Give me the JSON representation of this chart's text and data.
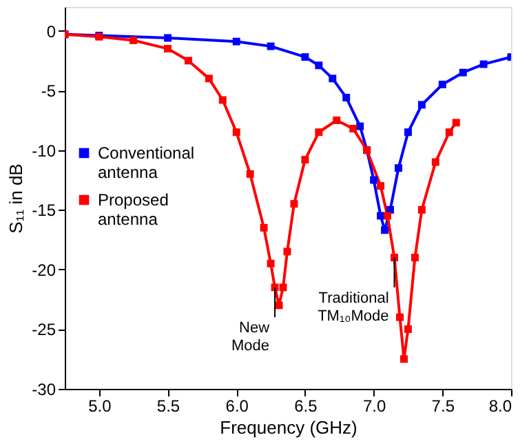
{
  "chart_data": {
    "type": "line",
    "xlabel": "Frequency (GHz)",
    "ylabel": "S₁₁ in dB",
    "xlim": [
      4.75,
      8.0
    ],
    "ylim": [
      -30,
      2
    ],
    "xticks": [
      {
        "value": 5,
        "label": "5.0"
      },
      5.5,
      {
        "value": 6,
        "label": "6.0"
      },
      6.5,
      {
        "value": 7,
        "label": "7.0"
      },
      7.5,
      {
        "value": 8,
        "label": "8.0"
      }
    ],
    "yticks": [
      -30,
      -25,
      -20,
      -15,
      -10,
      -5,
      0
    ],
    "grid": false,
    "legend": "left",
    "marker": "square",
    "line_style": "solid",
    "series": [
      {
        "name": "Conventional antenna",
        "color": "#0000ff",
        "x": [
          4.75,
          5.0,
          5.5,
          6.0,
          6.25,
          6.5,
          6.6,
          6.7,
          6.8,
          6.9,
          6.95,
          7.0,
          7.05,
          7.08,
          7.12,
          7.18,
          7.25,
          7.35,
          7.5,
          7.65,
          7.8,
          8.0
        ],
        "values": [
          -0.3,
          -0.4,
          -0.6,
          -0.9,
          -1.3,
          -2.2,
          -2.9,
          -4.0,
          -5.6,
          -8,
          -10,
          -12.5,
          -15.5,
          -16.7,
          -15,
          -11.5,
          -8.5,
          -6.2,
          -4.5,
          -3.5,
          -2.8,
          -2.2
        ]
      },
      {
        "name": "Proposed antenna",
        "color": "#ff0000",
        "x": [
          4.75,
          5.0,
          5.25,
          5.5,
          5.65,
          5.8,
          5.9,
          6.0,
          6.1,
          6.2,
          6.25,
          6.28,
          6.31,
          6.34,
          6.37,
          6.42,
          6.5,
          6.6,
          6.73,
          6.85,
          6.95,
          7.05,
          7.1,
          7.15,
          7.19,
          7.22,
          7.25,
          7.3,
          7.35,
          7.45,
          7.55,
          7.6
        ],
        "values": [
          -0.3,
          -0.5,
          -0.8,
          -1.5,
          -2.5,
          -4,
          -5.8,
          -8.5,
          -12,
          -16.5,
          -19.5,
          -21.5,
          -23,
          -21.5,
          -18.5,
          -14.5,
          -10.8,
          -8.5,
          -7.5,
          -8.2,
          -10,
          -13,
          -15.5,
          -19,
          -24,
          -27.5,
          -25,
          -19,
          -15,
          -11,
          -8.5,
          -7.7
        ]
      }
    ],
    "annotations": [
      {
        "text": "New Mode",
        "x": 6.28,
        "y": -21.5
      },
      {
        "text": "Traditional TM₁₀Mode",
        "x": 7.15,
        "y": -19
      }
    ]
  }
}
